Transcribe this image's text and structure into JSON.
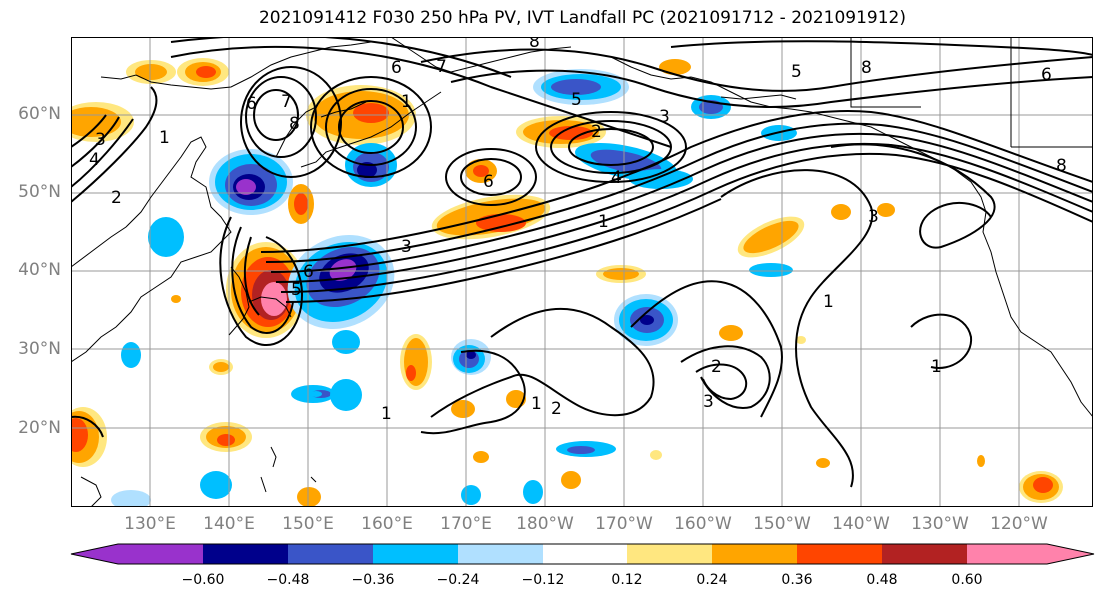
{
  "title": "2021091412 F030 250 hPa PV, IVT Landfall PC (2021091712 - 2021091912)",
  "lat_labels": [
    "60°N",
    "50°N",
    "40°N",
    "30°N",
    "20°N"
  ],
  "lon_labels": [
    "130°E",
    "140°E",
    "150°E",
    "160°E",
    "170°E",
    "180°W",
    "170°W",
    "160°W",
    "150°W",
    "140°W",
    "130°W",
    "120°W"
  ],
  "colorbar": {
    "ticks": [
      "−0.60",
      "−0.48",
      "−0.36",
      "−0.24",
      "−0.12",
      "0.12",
      "0.24",
      "0.36",
      "0.48",
      "0.60"
    ],
    "colors": [
      "#9932cc",
      "#00008b",
      "#3a55c8",
      "#00bfff",
      "#b0e0ff",
      "#ffffff",
      "#ffe780",
      "#ffa500",
      "#ff4500",
      "#b22222",
      "#ff82ab"
    ]
  },
  "contour_labels": [
    "3",
    "1",
    "4",
    "2",
    "6",
    "7",
    "8",
    "1",
    "6",
    "7",
    "8",
    "5",
    "3",
    "1",
    "2",
    "4",
    "5",
    "8",
    "6",
    "8",
    "6",
    "5",
    "6",
    "3",
    "1",
    "1",
    "1",
    "2",
    "2",
    "3",
    "1",
    "3"
  ]
}
